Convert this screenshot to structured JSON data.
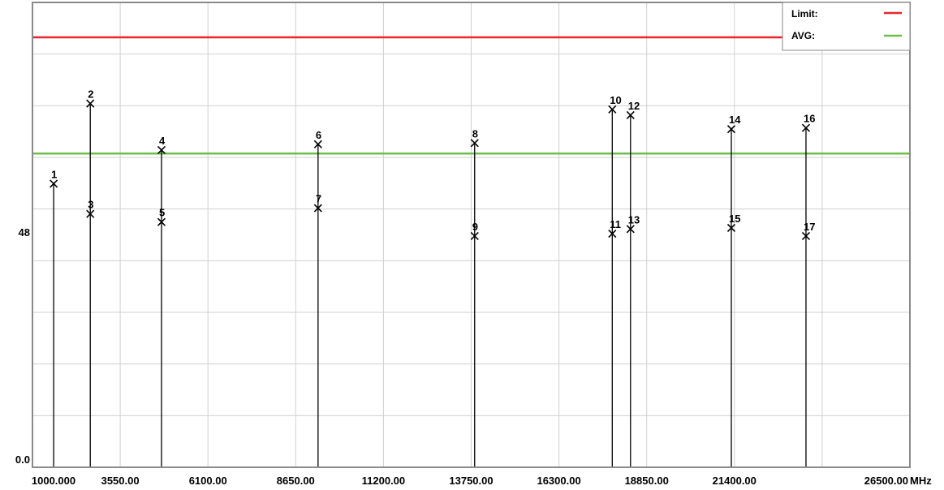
{
  "chart_data": {
    "type": "stem",
    "x_unit": "MHz",
    "xlim": [
      1000,
      26500
    ],
    "ylim": [
      0,
      80
    ],
    "grid": true,
    "legend_placement": "top-right",
    "x_ticks": [
      "1000.000",
      "3550.00",
      "6100.00",
      "8650.00",
      "11200.00",
      "13750.00",
      "16300.00",
      "18850.00",
      "21400.00",
      "26500.00"
    ],
    "y_ticks": [
      "48",
      "0.0"
    ],
    "limits": [
      {
        "name": "Limit:",
        "value": 74,
        "color": "#e8262b"
      },
      {
        "name": "AVG:",
        "value": 54,
        "color": "#6cc04a"
      }
    ],
    "markers": [
      {
        "label": "1",
        "x": 1616,
        "y": 48.8
      },
      {
        "label": "2",
        "x": 2680,
        "y": 62.6
      },
      {
        "label": "3",
        "x": 2680,
        "y": 43.6
      },
      {
        "label": "4",
        "x": 4750,
        "y": 54.6
      },
      {
        "label": "5",
        "x": 4750,
        "y": 42.2
      },
      {
        "label": "6",
        "x": 9300,
        "y": 55.6
      },
      {
        "label": "7",
        "x": 9300,
        "y": 44.6
      },
      {
        "label": "8",
        "x": 13850,
        "y": 55.8
      },
      {
        "label": "9",
        "x": 13850,
        "y": 39.8
      },
      {
        "label": "10",
        "x": 17850,
        "y": 61.6
      },
      {
        "label": "11",
        "x": 17850,
        "y": 40.2
      },
      {
        "label": "12",
        "x": 18380,
        "y": 60.6
      },
      {
        "label": "13",
        "x": 18380,
        "y": 41.0
      },
      {
        "label": "14",
        "x": 21310,
        "y": 58.2
      },
      {
        "label": "15",
        "x": 21310,
        "y": 41.2
      },
      {
        "label": "16",
        "x": 23480,
        "y": 58.4
      },
      {
        "label": "17",
        "x": 23480,
        "y": 39.8
      }
    ]
  }
}
